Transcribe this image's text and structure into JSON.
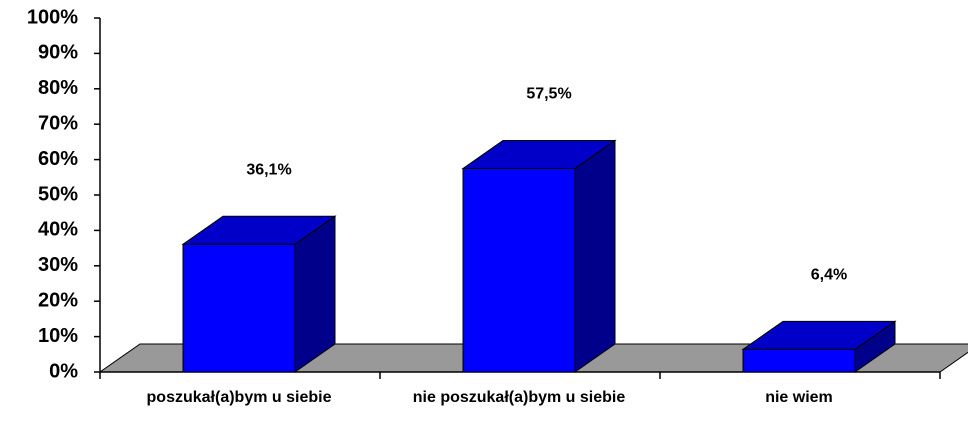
{
  "chart_data": {
    "type": "bar3d",
    "categories": [
      "poszukał(a)bym u siebie",
      "nie poszukał(a)bym u siebie",
      "nie wiem"
    ],
    "values": [
      36.1,
      57.5,
      6.4
    ],
    "value_labels": [
      "36,1%",
      "57,5%",
      "6,4%"
    ],
    "color": "#0000ff",
    "ylim": [
      0,
      100
    ],
    "yticks": [
      {
        "value": 0,
        "label": "0%"
      },
      {
        "value": 10,
        "label": "10%"
      },
      {
        "value": 20,
        "label": "20%"
      },
      {
        "value": 30,
        "label": "30%"
      },
      {
        "value": 40,
        "label": "40%"
      },
      {
        "value": 50,
        "label": "50%"
      },
      {
        "value": 60,
        "label": "60%"
      },
      {
        "value": 70,
        "label": "70%"
      },
      {
        "value": 80,
        "label": "80%"
      },
      {
        "value": 90,
        "label": "90%"
      },
      {
        "value": 100,
        "label": "100%"
      }
    ],
    "grid": false
  }
}
